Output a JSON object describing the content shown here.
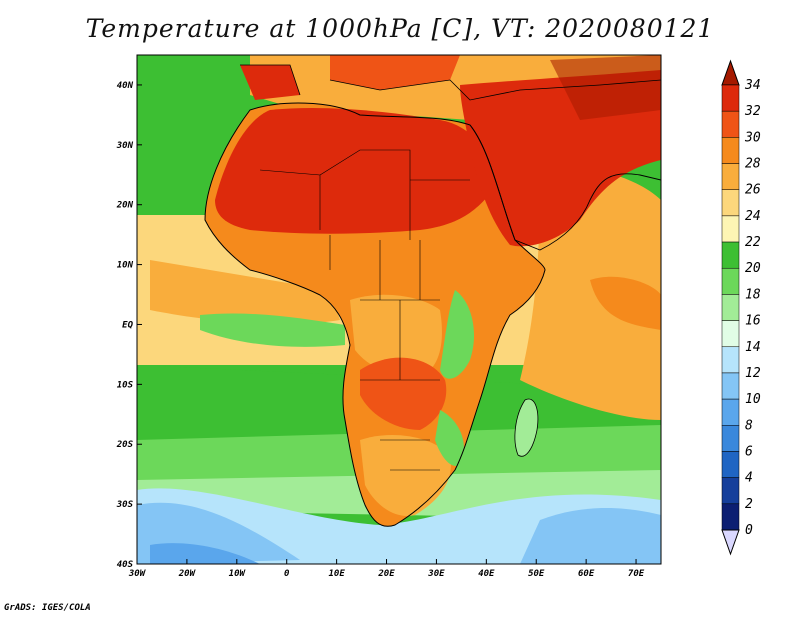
{
  "title": "Temperature at 1000hPa [C], VT: 2020080121",
  "footer": "GrADS: IGES/COLA",
  "map": {
    "lon_range": [
      -30,
      75
    ],
    "lat_range": [
      -40,
      45
    ],
    "lon_ticks": [
      "30W",
      "20W",
      "10W",
      "0",
      "10E",
      "20E",
      "30E",
      "40E",
      "50E",
      "60E",
      "70E"
    ],
    "lat_ticks": [
      "40N",
      "30N",
      "20N",
      "10N",
      "EQ",
      "10S",
      "20S",
      "30S",
      "40S"
    ]
  },
  "colorbar": {
    "levels": [
      "34",
      "32",
      "30",
      "28",
      "26",
      "24",
      "22",
      "20",
      "18",
      "16",
      "14",
      "12",
      "10",
      "8",
      "6",
      "4",
      "2",
      "0"
    ],
    "colors": [
      "#a51a00",
      "#dd2a0c",
      "#ef5416",
      "#f58a1c",
      "#f9ad3c",
      "#fcd77c",
      "#fdf5b4",
      "#3dbf33",
      "#6cd85a",
      "#a2ec97",
      "#e1fde6",
      "#b6e4fb",
      "#84c5f5",
      "#5aa6ec",
      "#3a88dc",
      "#1f65c3",
      "#153f9b",
      "#0c1f72",
      "#dad8ff"
    ]
  },
  "regions": {
    "ocean_cold": "#84c5f5",
    "ocean_cool": "#b6e4fb",
    "ocean_mild": "#a2ec97",
    "ocean_warm": "#3dbf33",
    "ocean_tropical": "#fcd77c",
    "ocean_gulf": "#f9ad3c",
    "land_hot": "#dd2a0c",
    "land_warm": "#ef5416",
    "land_mid": "#f58a1c",
    "land_cool": "#6cd85a"
  }
}
